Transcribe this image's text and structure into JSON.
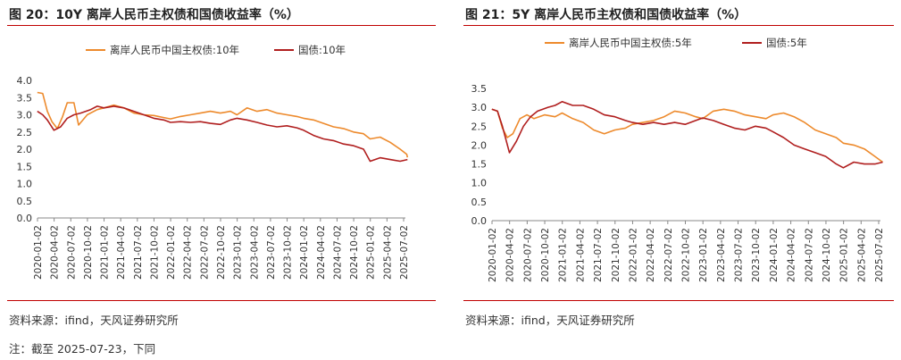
{
  "left_panel": {
    "title": "图 20：10Y 离岸人民币主权债和国债收益率（%）",
    "source": "资料来源：ifind，天风证券研究所",
    "note": "注：截至 2025-07-23，下同"
  },
  "right_panel": {
    "title": "图 21：5Y 离岸人民币主权债和国债收益率（%）",
    "source": "资料来源：ifind，天风证券研究所"
  },
  "colors": {
    "offshore": "#ED8A2C",
    "govt": "#B01E1E",
    "rule": "#c00000"
  },
  "chart_data": [
    {
      "type": "line",
      "x_ticks": [
        "2020-01-02",
        "2020-04-02",
        "2020-07-02",
        "2020-10-02",
        "2021-01-02",
        "2021-04-02",
        "2021-07-02",
        "2021-10-02",
        "2022-01-02",
        "2022-04-02",
        "2022-07-02",
        "2022-10-02",
        "2023-01-02",
        "2023-04-02",
        "2023-07-02",
        "2023-10-02",
        "2024-01-02",
        "2024-04-02",
        "2024-07-02",
        "2024-10-02",
        "2025-01-02",
        "2025-04-02",
        "2025-07-02"
      ],
      "y_ticks": [
        "0.0",
        "0.5",
        "1.0",
        "1.5",
        "2.0",
        "2.5",
        "3.0",
        "3.5",
        "4.0"
      ],
      "ylim": [
        0,
        4.0
      ],
      "series": [
        {
          "name": "离岸人民币中国主权债:10年",
          "color": "#ED8A2C",
          "points": [
            [
              2020.0,
              3.65
            ],
            [
              2020.08,
              3.62
            ],
            [
              2020.15,
              3.1
            ],
            [
              2020.22,
              2.8
            ],
            [
              2020.3,
              2.6
            ],
            [
              2020.38,
              2.95
            ],
            [
              2020.45,
              3.35
            ],
            [
              2020.55,
              3.35
            ],
            [
              2020.62,
              2.7
            ],
            [
              2020.75,
              3.0
            ],
            [
              2020.9,
              3.15
            ],
            [
              2021.0,
              3.2
            ],
            [
              2021.15,
              3.28
            ],
            [
              2021.3,
              3.2
            ],
            [
              2021.45,
              3.05
            ],
            [
              2021.6,
              3.0
            ],
            [
              2021.75,
              2.98
            ],
            [
              2021.9,
              2.92
            ],
            [
              2022.0,
              2.88
            ],
            [
              2022.15,
              2.95
            ],
            [
              2022.3,
              3.0
            ],
            [
              2022.45,
              3.05
            ],
            [
              2022.6,
              3.1
            ],
            [
              2022.75,
              3.05
            ],
            [
              2022.9,
              3.1
            ],
            [
              2023.0,
              3.0
            ],
            [
              2023.15,
              3.2
            ],
            [
              2023.3,
              3.1
            ],
            [
              2023.45,
              3.15
            ],
            [
              2023.6,
              3.05
            ],
            [
              2023.75,
              3.0
            ],
            [
              2023.9,
              2.95
            ],
            [
              2024.0,
              2.9
            ],
            [
              2024.15,
              2.85
            ],
            [
              2024.3,
              2.75
            ],
            [
              2024.45,
              2.65
            ],
            [
              2024.6,
              2.6
            ],
            [
              2024.75,
              2.5
            ],
            [
              2024.9,
              2.45
            ],
            [
              2025.0,
              2.3
            ],
            [
              2025.15,
              2.35
            ],
            [
              2025.3,
              2.2
            ],
            [
              2025.45,
              2.0
            ],
            [
              2025.55,
              1.85
            ],
            [
              2025.56,
              1.76
            ]
          ]
        },
        {
          "name": "国债:10年",
          "color": "#B01E1E",
          "points": [
            [
              2020.0,
              3.1
            ],
            [
              2020.08,
              3.0
            ],
            [
              2020.15,
              2.85
            ],
            [
              2020.25,
              2.55
            ],
            [
              2020.35,
              2.65
            ],
            [
              2020.45,
              2.9
            ],
            [
              2020.55,
              3.0
            ],
            [
              2020.65,
              3.05
            ],
            [
              2020.8,
              3.15
            ],
            [
              2020.9,
              3.25
            ],
            [
              2021.0,
              3.2
            ],
            [
              2021.15,
              3.25
            ],
            [
              2021.3,
              3.2
            ],
            [
              2021.45,
              3.1
            ],
            [
              2021.6,
              3.0
            ],
            [
              2021.75,
              2.9
            ],
            [
              2021.9,
              2.85
            ],
            [
              2022.0,
              2.78
            ],
            [
              2022.15,
              2.8
            ],
            [
              2022.3,
              2.78
            ],
            [
              2022.45,
              2.8
            ],
            [
              2022.6,
              2.75
            ],
            [
              2022.75,
              2.72
            ],
            [
              2022.9,
              2.85
            ],
            [
              2023.0,
              2.9
            ],
            [
              2023.15,
              2.85
            ],
            [
              2023.3,
              2.78
            ],
            [
              2023.45,
              2.7
            ],
            [
              2023.6,
              2.65
            ],
            [
              2023.75,
              2.68
            ],
            [
              2023.9,
              2.62
            ],
            [
              2024.0,
              2.55
            ],
            [
              2024.15,
              2.4
            ],
            [
              2024.3,
              2.3
            ],
            [
              2024.45,
              2.25
            ],
            [
              2024.6,
              2.15
            ],
            [
              2024.75,
              2.1
            ],
            [
              2024.9,
              2.0
            ],
            [
              2025.0,
              1.65
            ],
            [
              2025.15,
              1.75
            ],
            [
              2025.3,
              1.7
            ],
            [
              2025.45,
              1.65
            ],
            [
              2025.56,
              1.7
            ]
          ]
        }
      ]
    },
    {
      "type": "line",
      "x_ticks": [
        "2020-01-02",
        "2020-04-02",
        "2020-07-02",
        "2020-10-02",
        "2021-01-02",
        "2021-04-02",
        "2021-07-02",
        "2021-10-02",
        "2022-01-02",
        "2022-04-02",
        "2022-07-02",
        "2022-10-02",
        "2023-01-02",
        "2023-04-02",
        "2023-07-02",
        "2023-10-02",
        "2024-01-02",
        "2024-04-02",
        "2024-07-02",
        "2024-10-02",
        "2025-01-02",
        "2025-04-02",
        "2025-07-02"
      ],
      "y_ticks": [
        "0.0",
        "0.5",
        "1.0",
        "1.5",
        "2.0",
        "2.5",
        "3.0",
        "3.5"
      ],
      "ylim": [
        0,
        3.5
      ],
      "series": [
        {
          "name": "离岸人民币中国主权债:5年",
          "color": "#ED8A2C",
          "points": [
            [
              2020.0,
              2.95
            ],
            [
              2020.08,
              2.9
            ],
            [
              2020.15,
              2.45
            ],
            [
              2020.22,
              2.2
            ],
            [
              2020.3,
              2.3
            ],
            [
              2020.4,
              2.7
            ],
            [
              2020.5,
              2.8
            ],
            [
              2020.6,
              2.7
            ],
            [
              2020.75,
              2.8
            ],
            [
              2020.9,
              2.75
            ],
            [
              2021.0,
              2.85
            ],
            [
              2021.15,
              2.7
            ],
            [
              2021.3,
              2.6
            ],
            [
              2021.45,
              2.4
            ],
            [
              2021.6,
              2.3
            ],
            [
              2021.75,
              2.4
            ],
            [
              2021.9,
              2.45
            ],
            [
              2022.0,
              2.55
            ],
            [
              2022.15,
              2.6
            ],
            [
              2022.3,
              2.65
            ],
            [
              2022.45,
              2.75
            ],
            [
              2022.6,
              2.9
            ],
            [
              2022.75,
              2.85
            ],
            [
              2022.9,
              2.75
            ],
            [
              2023.0,
              2.7
            ],
            [
              2023.15,
              2.9
            ],
            [
              2023.3,
              2.95
            ],
            [
              2023.45,
              2.9
            ],
            [
              2023.6,
              2.8
            ],
            [
              2023.75,
              2.75
            ],
            [
              2023.9,
              2.7
            ],
            [
              2024.0,
              2.8
            ],
            [
              2024.15,
              2.85
            ],
            [
              2024.3,
              2.75
            ],
            [
              2024.45,
              2.6
            ],
            [
              2024.6,
              2.4
            ],
            [
              2024.75,
              2.3
            ],
            [
              2024.9,
              2.2
            ],
            [
              2025.0,
              2.05
            ],
            [
              2025.15,
              2.0
            ],
            [
              2025.3,
              1.9
            ],
            [
              2025.45,
              1.7
            ],
            [
              2025.56,
              1.55
            ]
          ]
        },
        {
          "name": "国债:5年",
          "color": "#B01E1E",
          "points": [
            [
              2020.0,
              2.95
            ],
            [
              2020.08,
              2.9
            ],
            [
              2020.15,
              2.5
            ],
            [
              2020.25,
              1.8
            ],
            [
              2020.35,
              2.1
            ],
            [
              2020.45,
              2.5
            ],
            [
              2020.55,
              2.75
            ],
            [
              2020.65,
              2.9
            ],
            [
              2020.8,
              3.0
            ],
            [
              2020.9,
              3.05
            ],
            [
              2021.0,
              3.15
            ],
            [
              2021.15,
              3.05
            ],
            [
              2021.3,
              3.05
            ],
            [
              2021.45,
              2.95
            ],
            [
              2021.6,
              2.8
            ],
            [
              2021.75,
              2.75
            ],
            [
              2021.9,
              2.65
            ],
            [
              2022.0,
              2.6
            ],
            [
              2022.15,
              2.55
            ],
            [
              2022.3,
              2.6
            ],
            [
              2022.45,
              2.55
            ],
            [
              2022.6,
              2.6
            ],
            [
              2022.75,
              2.55
            ],
            [
              2022.9,
              2.65
            ],
            [
              2023.0,
              2.72
            ],
            [
              2023.15,
              2.65
            ],
            [
              2023.3,
              2.55
            ],
            [
              2023.45,
              2.45
            ],
            [
              2023.6,
              2.4
            ],
            [
              2023.75,
              2.5
            ],
            [
              2023.9,
              2.45
            ],
            [
              2024.0,
              2.35
            ],
            [
              2024.15,
              2.2
            ],
            [
              2024.3,
              2.0
            ],
            [
              2024.45,
              1.9
            ],
            [
              2024.6,
              1.8
            ],
            [
              2024.75,
              1.7
            ],
            [
              2024.9,
              1.5
            ],
            [
              2025.0,
              1.4
            ],
            [
              2025.15,
              1.55
            ],
            [
              2025.3,
              1.5
            ],
            [
              2025.45,
              1.5
            ],
            [
              2025.56,
              1.55
            ]
          ]
        }
      ]
    }
  ]
}
